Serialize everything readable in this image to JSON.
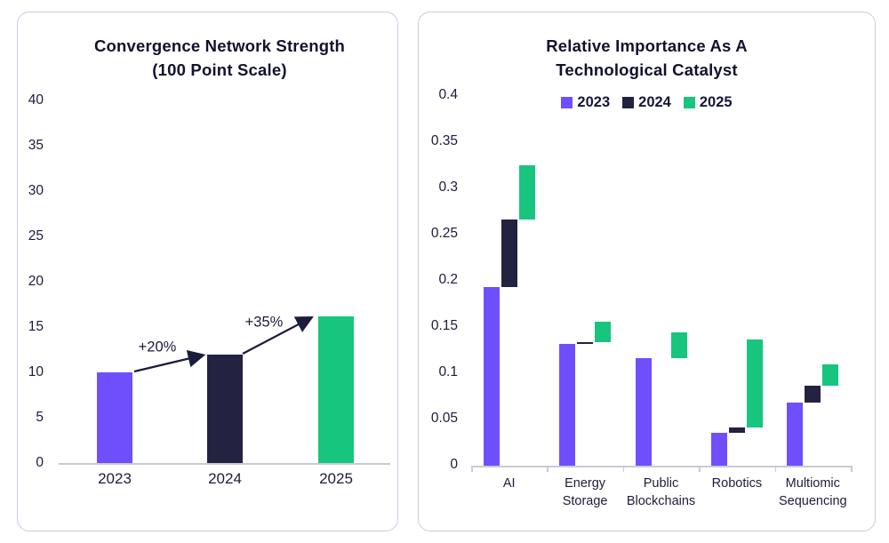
{
  "colors": {
    "purple": "#6f4ffc",
    "navy": "#232240",
    "green": "#17c57f",
    "text": "#1c1c3c",
    "title": "#12122e",
    "axis": "#c9cad6"
  },
  "chart_data": [
    {
      "type": "bar",
      "title": "Convergence Network Strength (100 Point Scale)",
      "title_lines": [
        "Convergence Network Strength",
        "(100 Point Scale)"
      ],
      "categories": [
        "2023",
        "2024",
        "2025"
      ],
      "values": [
        10,
        12,
        16.2
      ],
      "bar_color_names": [
        "purple",
        "navy",
        "green"
      ],
      "ylim": [
        0,
        40
      ],
      "yticks": [
        0,
        5,
        10,
        15,
        20,
        25,
        30,
        35,
        40
      ],
      "grid": false,
      "annotations": [
        {
          "label": "+20%",
          "from": "2023",
          "to": "2024"
        },
        {
          "label": "+35%",
          "from": "2024",
          "to": "2025"
        }
      ]
    },
    {
      "type": "floating-bar",
      "title": "Relative Importance As A Technological Catalyst",
      "title_lines": [
        "Relative Importance As A",
        "Technological Catalyst"
      ],
      "legend": {
        "position": "top-center",
        "items": [
          {
            "label": "2023",
            "color_name": "purple"
          },
          {
            "label": "2024",
            "color_name": "navy"
          },
          {
            "label": "2025",
            "color_name": "green"
          }
        ]
      },
      "categories": [
        "AI",
        "Energy Storage",
        "Public Blockchains",
        "Robotics",
        "Multiomic Sequencing"
      ],
      "category_label_lines": [
        [
          "AI"
        ],
        [
          "Energy",
          "Storage"
        ],
        [
          "Public",
          "Blockchains"
        ],
        [
          "Robotics"
        ],
        [
          "Multiomic",
          "Sequencing"
        ]
      ],
      "series": [
        {
          "name": "2023",
          "color_name": "purple",
          "values": [
            0.193,
            0.132,
            0.116,
            0.036,
            0.068
          ]
        },
        {
          "name": "2024",
          "color_name": "navy",
          "values": [
            0.266,
            0.134,
            0.116,
            0.041,
            0.087
          ]
        },
        {
          "name": "2025",
          "color_name": "green",
          "values": [
            0.325,
            0.156,
            0.144,
            0.137,
            0.11
          ]
        }
      ],
      "segment_rule": "each year's bar floats from the previous year's value up to its own value",
      "ylim": [
        0,
        0.4
      ],
      "ytick_labels": [
        "0.4",
        "0.35",
        "0.3",
        "0.25",
        "0.2",
        "0.15",
        "0.1",
        "0.05",
        "0"
      ],
      "grid": false
    }
  ]
}
